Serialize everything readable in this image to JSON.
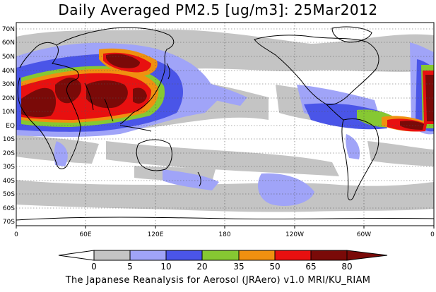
{
  "title": "Daily Averaged PM2.5 [ug/m3]: 25Mar2012",
  "footer": "The Japanese Reanalysis for Aerosol (JRAero) v1.0 MRI/KU_RIAM",
  "lat_labels": [
    "70N",
    "60N",
    "50N",
    "40N",
    "30N",
    "20N",
    "10N",
    "EQ",
    "10S",
    "20S",
    "30S",
    "40S",
    "50S",
    "60S",
    "70S"
  ],
  "lon_labels": [
    "0",
    "60E",
    "120E",
    "180",
    "120W",
    "60W",
    "0"
  ],
  "colorbar": {
    "ticks": [
      "0",
      "5",
      "10",
      "20",
      "35",
      "50",
      "65",
      "80"
    ],
    "colors": [
      "#ffffff",
      "#c4c4c4",
      "#a0a4f8",
      "#4a55e8",
      "#86c832",
      "#f09010",
      "#e81010",
      "#7a0a08"
    ]
  }
}
